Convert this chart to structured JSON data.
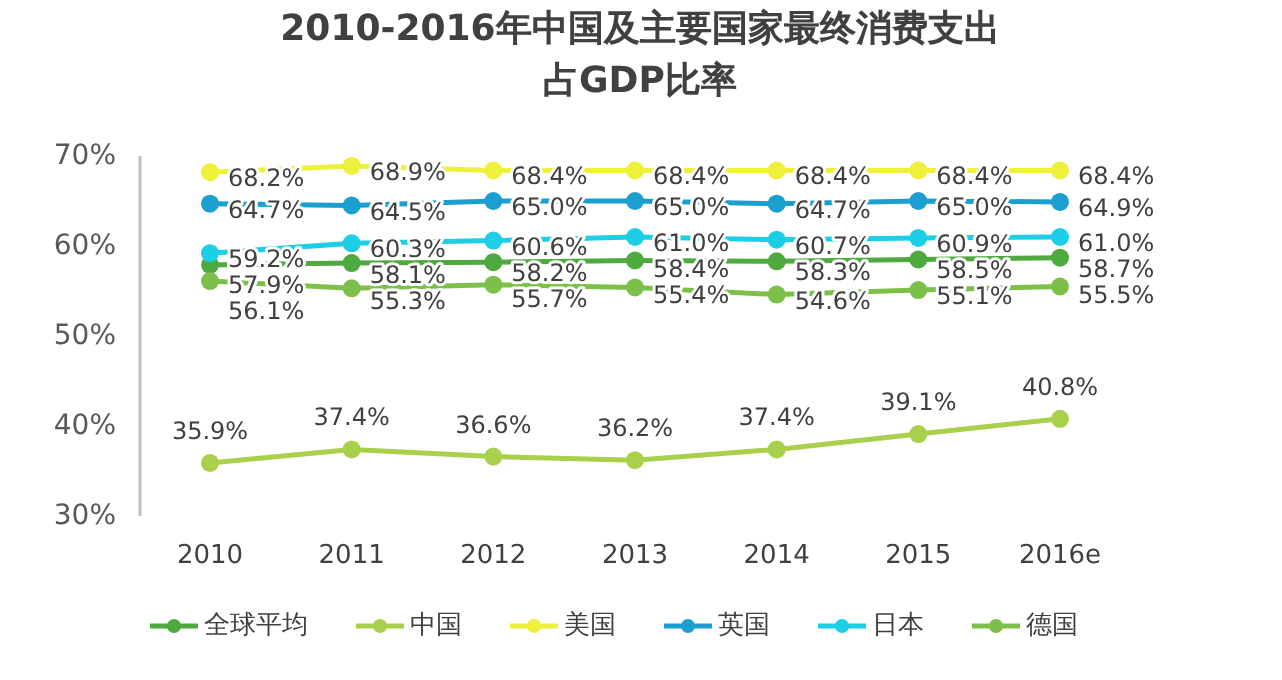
{
  "chart_data": {
    "type": "line",
    "title": "2010-2016年中国及主要国家最终消费支出占GDP比率",
    "categories": [
      "2010",
      "2011",
      "2012",
      "2013",
      "2014",
      "2015",
      "2016e"
    ],
    "ylim": [
      30,
      70
    ],
    "yticks": [
      {
        "value": 30,
        "label": "30%"
      },
      {
        "value": 40,
        "label": "40%"
      },
      {
        "value": 50,
        "label": "50%"
      },
      {
        "value": 60,
        "label": "60%"
      },
      {
        "value": 70,
        "label": "70%"
      }
    ],
    "grid": false,
    "legend": "bottom",
    "marker": "circle",
    "line_style": "solid",
    "series": [
      {
        "name": "全球平均",
        "color": "#4ea93e",
        "values": [
          57.9,
          58.1,
          58.2,
          58.4,
          58.3,
          58.5,
          58.7
        ],
        "value_labels": [
          "57.9%",
          "58.1%",
          "58.2%",
          "58.4%",
          "58.3%",
          "58.5%",
          "58.7%"
        ]
      },
      {
        "name": "中国",
        "color": "#a9d04a",
        "values": [
          35.9,
          37.4,
          36.6,
          36.2,
          37.4,
          39.1,
          40.8
        ],
        "value_labels": [
          "35.9%",
          "37.4%",
          "36.6%",
          "36.2%",
          "37.4%",
          "39.1%",
          "40.8%"
        ]
      },
      {
        "name": "美国",
        "color": "#eef03a",
        "values": [
          68.2,
          68.9,
          68.4,
          68.4,
          68.4,
          68.4,
          68.4
        ],
        "value_labels": [
          "68.2%",
          "68.9%",
          "68.4%",
          "68.4%",
          "68.4%",
          "68.4%",
          "68.4%"
        ]
      },
      {
        "name": "英国",
        "color": "#1a9fd0",
        "values": [
          64.7,
          64.5,
          65.0,
          65.0,
          64.7,
          65.0,
          64.9
        ],
        "value_labels": [
          "64.7%",
          "64.5%",
          "65.0%",
          "65.0%",
          "64.7%",
          "65.0%",
          "64.9%"
        ]
      },
      {
        "name": "日本",
        "color": "#1ccfe6",
        "values": [
          59.2,
          60.3,
          60.6,
          61.0,
          60.7,
          60.9,
          61.0
        ],
        "value_labels": [
          "59.2%",
          "60.3%",
          "60.6%",
          "61.0%",
          "60.7%",
          "60.9%",
          "61.0%"
        ]
      },
      {
        "name": "德国",
        "color": "#7cc04a",
        "values": [
          56.1,
          55.3,
          55.7,
          55.4,
          54.6,
          55.1,
          55.5
        ],
        "value_labels": [
          "56.1%",
          "55.3%",
          "55.7%",
          "55.4%",
          "54.6%",
          "55.1%",
          "55.5%"
        ]
      }
    ]
  }
}
